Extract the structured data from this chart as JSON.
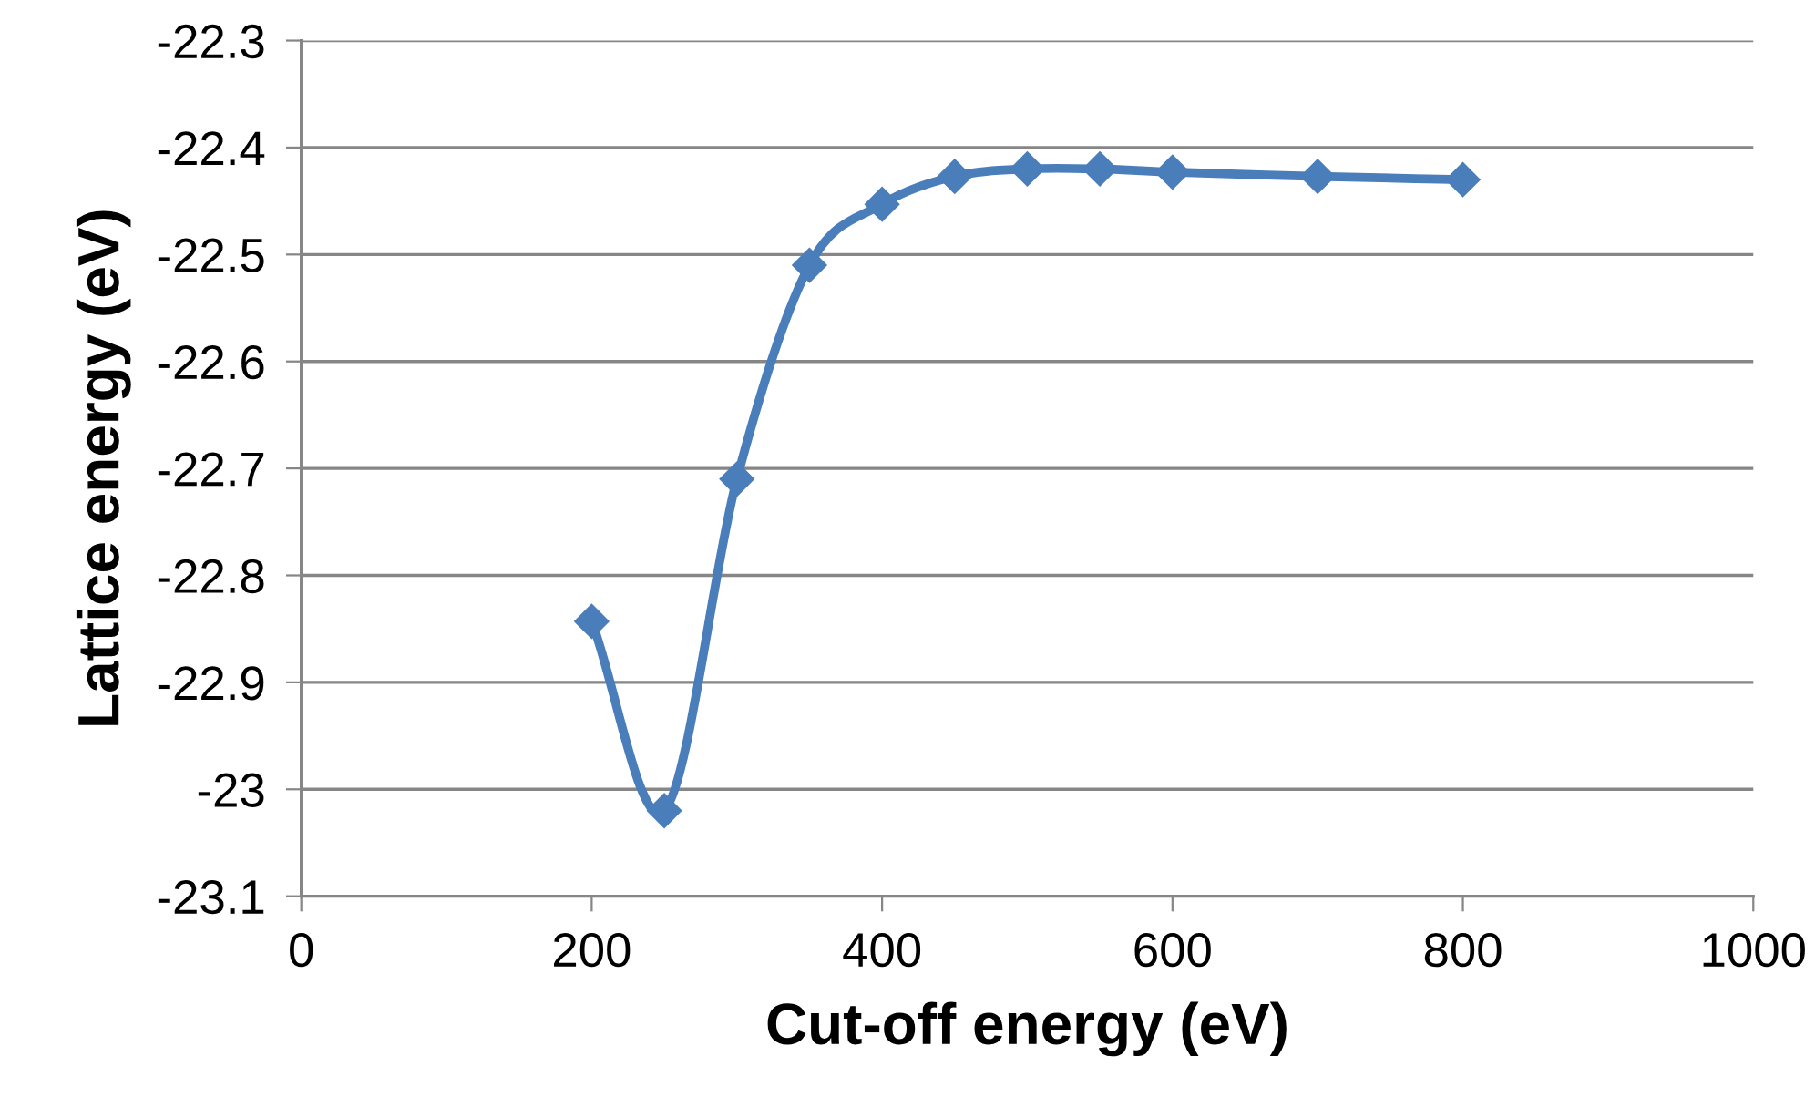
{
  "chart_data": {
    "type": "line",
    "xlabel": "Cut-off energy (eV)",
    "ylabel": "Lattice energy (eV)",
    "x": [
      200,
      250,
      300,
      350,
      400,
      450,
      500,
      550,
      600,
      700,
      800
    ],
    "series": [
      {
        "color": "#4a7ebb",
        "values": [
          -22.843,
          -23.02,
          -22.71,
          -22.51,
          -22.453,
          -22.427,
          -22.42,
          -22.42,
          -22.423,
          -22.427,
          -22.43
        ]
      }
    ],
    "xlim": [
      0,
      1000
    ],
    "xticks": [
      0,
      200,
      400,
      600,
      800,
      1000
    ],
    "ylim": [
      -23.1,
      -22.3
    ],
    "yticks": [
      -23.1,
      -23,
      -22.9,
      -22.8,
      -22.7,
      -22.6,
      -22.5,
      -22.4,
      -22.3
    ],
    "grid": "y",
    "marker": "diamond",
    "line_style": "solid"
  }
}
